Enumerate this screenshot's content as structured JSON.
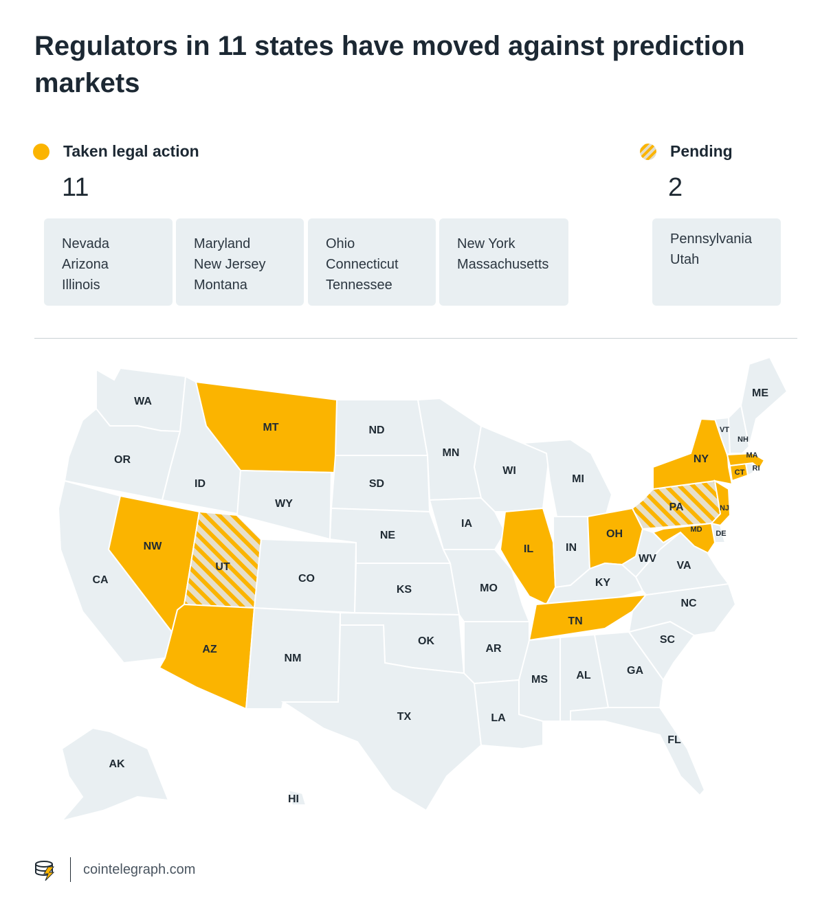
{
  "title": "Regulators in 11 states have moved against prediction markets",
  "legend": {
    "action": {
      "label": "Taken legal action",
      "count": "11",
      "color": "#fbb400"
    },
    "pending": {
      "label": "Pending",
      "count": "2"
    }
  },
  "action_cards": [
    [
      "Nevada",
      "Arizona",
      "Illinois"
    ],
    [
      "Maryland",
      "New Jersey",
      "Montana"
    ],
    [
      "Ohio",
      "Connecticut",
      "Tennessee"
    ],
    [
      "New York",
      "Massachusetts"
    ]
  ],
  "pending_card": [
    "Pennsylvania",
    "Utah"
  ],
  "map_labels": {
    "WA": "WA",
    "OR": "OR",
    "CA": "CA",
    "ID": "ID",
    "NV": "NW",
    "UT": "UT",
    "AZ": "AZ",
    "MT": "MT",
    "WY": "WY",
    "CO": "CO",
    "NM": "NM",
    "ND": "ND",
    "SD": "SD",
    "NE": "NE",
    "KS": "KS",
    "OK": "OK",
    "TX": "TX",
    "MN": "MN",
    "IA": "IA",
    "MO": "MO",
    "AR": "AR",
    "LA": "LA",
    "WI": "WI",
    "IL": "IL",
    "MI": "MI",
    "IN": "IN",
    "OH": "OH",
    "KY": "KY",
    "TN": "TN",
    "MS": "MS",
    "AL": "AL",
    "GA": "GA",
    "FL": "FL",
    "SC": "SC",
    "NC": "NC",
    "VA": "VA",
    "WV": "WV",
    "PA": "PA",
    "NY": "NY",
    "NJ": "NJ",
    "DE": "DE",
    "MD": "MD",
    "CT": "CT",
    "RI": "RI",
    "MA": "MA",
    "VT": "VT",
    "NH": "NH",
    "ME": "ME",
    "AK": "AK",
    "HI": "HI"
  },
  "state_status": {
    "NV": "action",
    "AZ": "action",
    "IL": "action",
    "MD": "action",
    "NJ": "action",
    "MT": "action",
    "OH": "action",
    "CT": "action",
    "TN": "action",
    "NY": "action",
    "MA": "action",
    "PA": "pending",
    "UT": "pending"
  },
  "footer": {
    "site": "cointelegraph.com"
  }
}
